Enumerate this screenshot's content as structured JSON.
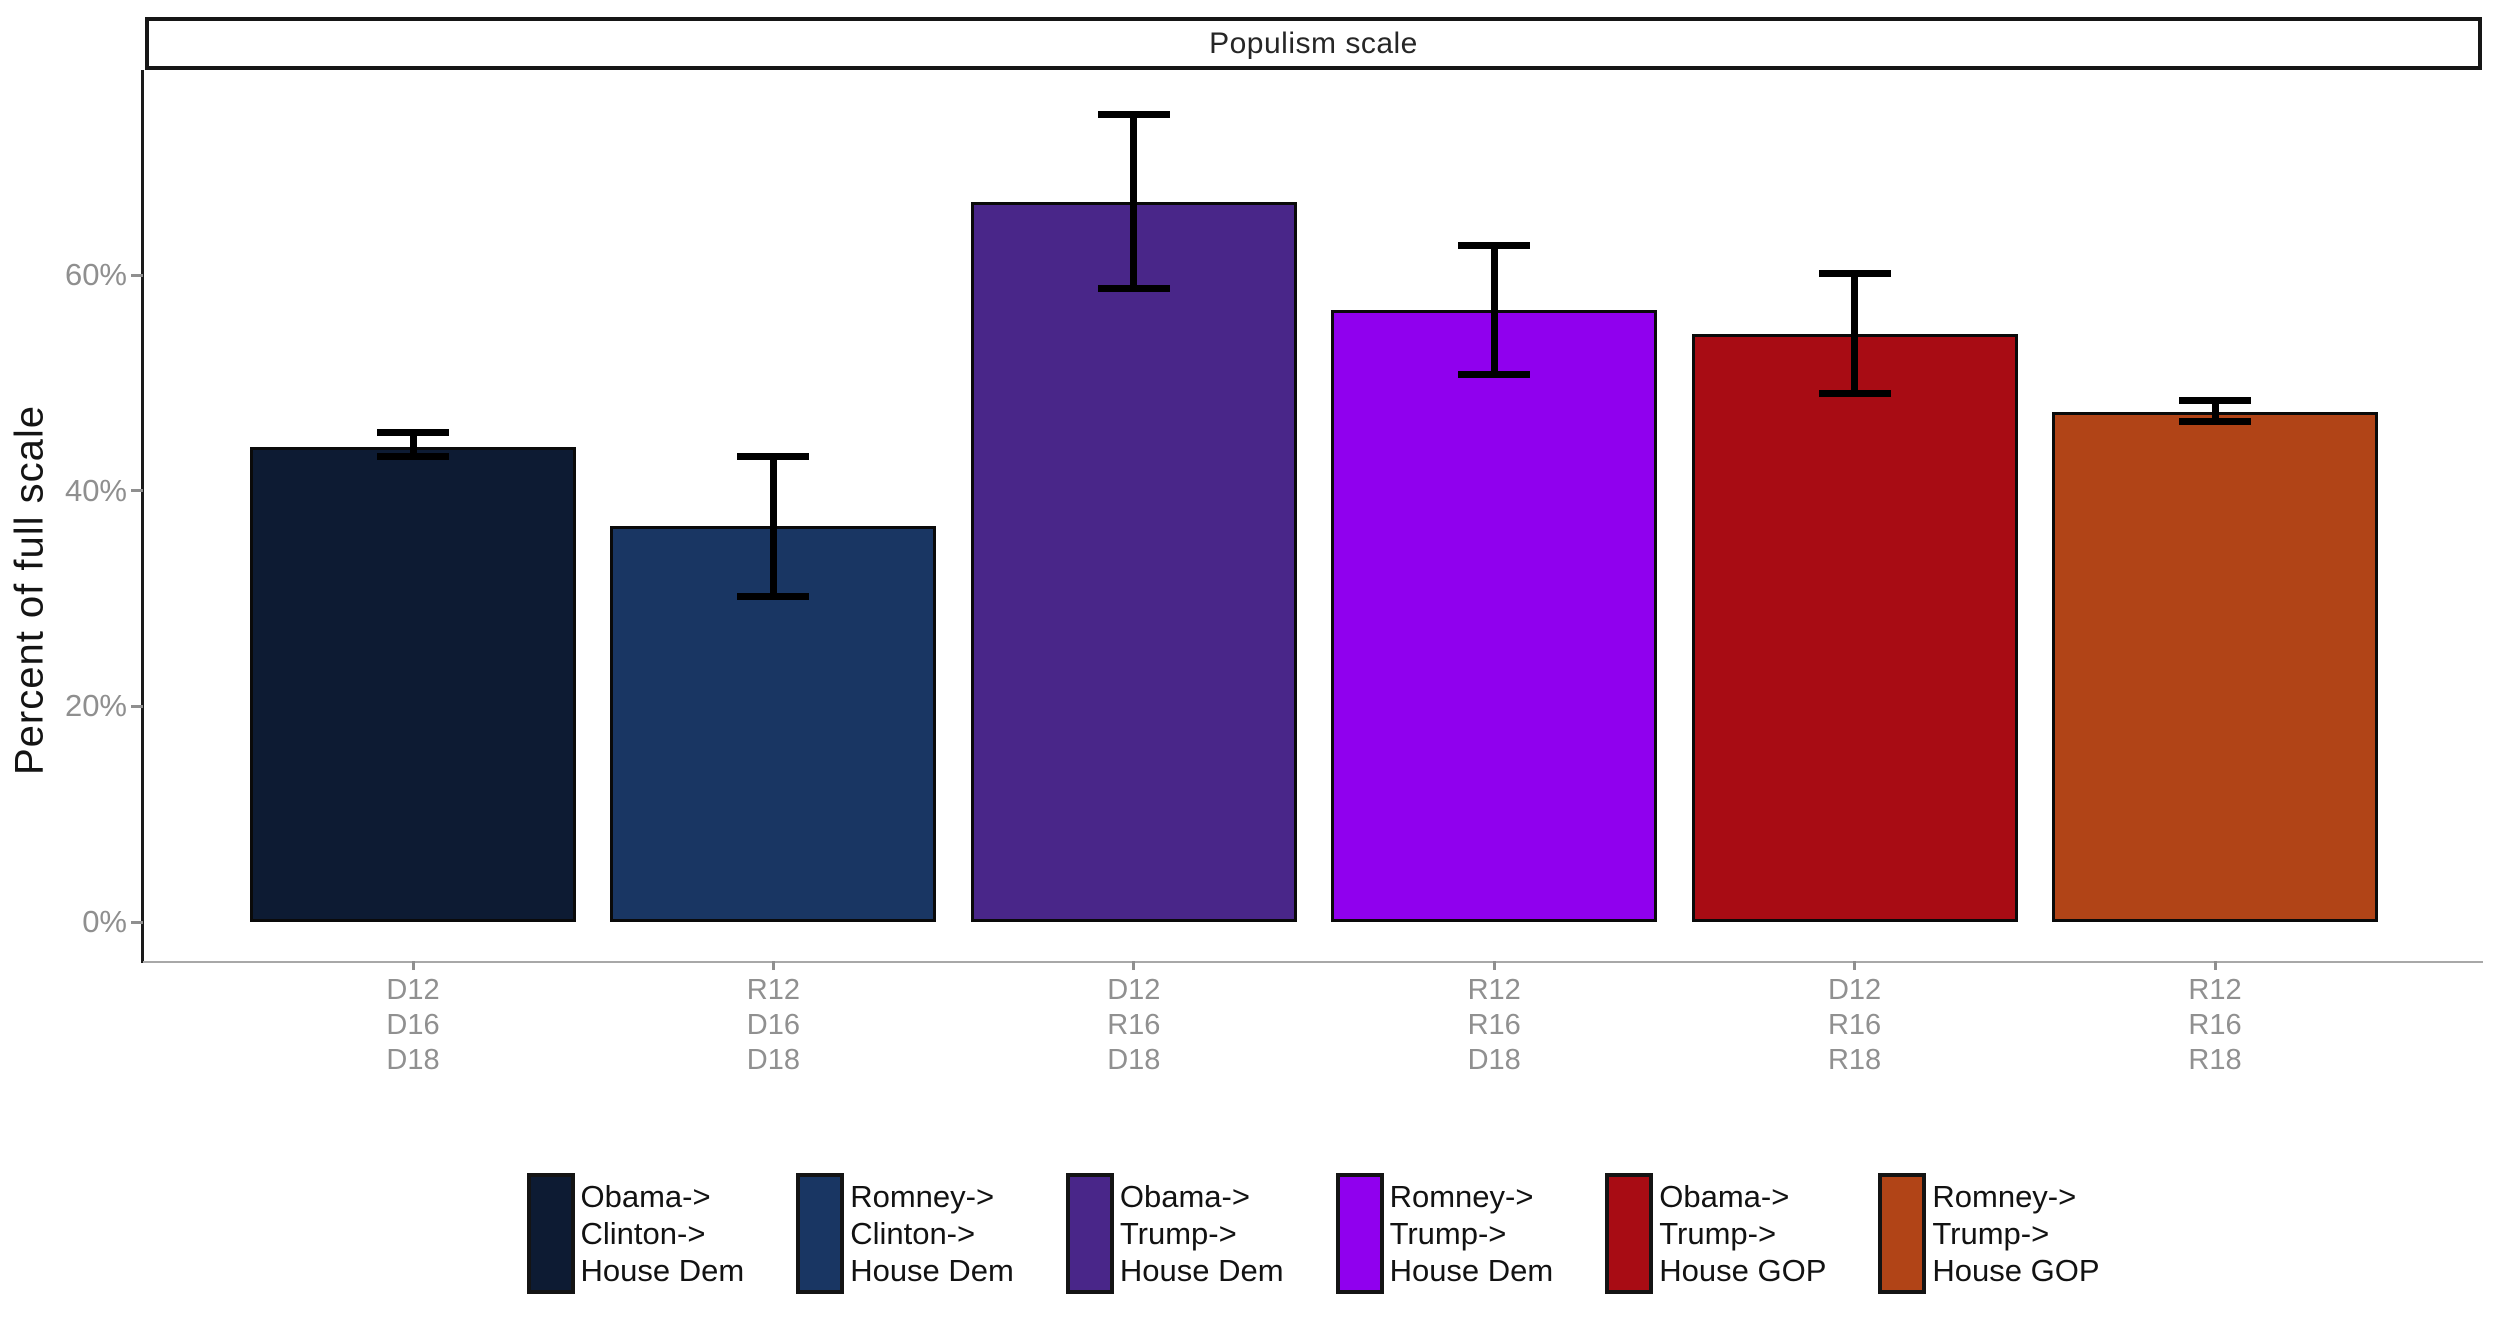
{
  "title": "Populism scale",
  "y_axis": {
    "title": "Percent of full scale",
    "tick_labels": [
      "0%",
      "20%",
      "40%",
      "60%"
    ],
    "tick_values": [
      0,
      20,
      40,
      60
    ]
  },
  "colors": {
    "background": "#FFFFFF",
    "title_text": "#262626",
    "title_box_border": "#161616",
    "y_axis_line": "#1A1A1A",
    "x_axis_line": "#A8A8A8",
    "tick_label_gray": "#8F8F8F",
    "bar_border": "#0A0A0A",
    "error_bar": "#000000",
    "legend_text": "#121212"
  },
  "chart_data": {
    "type": "bar",
    "title": "Populism scale",
    "xlabel": "",
    "ylabel": "Percent of full scale",
    "ylim": [
      0,
      79
    ],
    "yticks": [
      0,
      20,
      40,
      60
    ],
    "ytick_labels": [
      "0%",
      "20%",
      "40%",
      "60%"
    ],
    "grid": false,
    "legend_position": "bottom",
    "error_bars": true,
    "categories": [
      "D12 D16 D18",
      "R12 D16 D18",
      "D12 R16 D18",
      "R12 R16 D18",
      "D12 R16 R18",
      "R12 R16 R18"
    ],
    "values": [
      44.1,
      36.7,
      66.8,
      56.8,
      54.5,
      47.3
    ],
    "bars": [
      {
        "x_label_lines": [
          "D12",
          "D16",
          "D18"
        ],
        "legend_lines": [
          "Obama->",
          "Clinton->",
          "House Dem"
        ],
        "value": 44.1,
        "ci_low": 42.9,
        "ci_high": 45.7,
        "color": "#0D1B33"
      },
      {
        "x_label_lines": [
          "R12",
          "D16",
          "D18"
        ],
        "legend_lines": [
          "Romney->",
          "Clinton->",
          "House Dem"
        ],
        "value": 36.7,
        "ci_low": 29.9,
        "ci_high": 43.5,
        "color": "#193663"
      },
      {
        "x_label_lines": [
          "D12",
          "R16",
          "D18"
        ],
        "legend_lines": [
          "Obama->",
          "Trump->",
          "House Dem"
        ],
        "value": 66.8,
        "ci_low": 58.4,
        "ci_high": 75.2,
        "color": "#492689"
      },
      {
        "x_label_lines": [
          "R12",
          "R16",
          "D18"
        ],
        "legend_lines": [
          "Romney->",
          "Trump->",
          "House Dem"
        ],
        "value": 56.8,
        "ci_low": 50.5,
        "ci_high": 63.1,
        "color": "#9000EE"
      },
      {
        "x_label_lines": [
          "D12",
          "R16",
          "R18"
        ],
        "legend_lines": [
          "Obama->",
          "Trump->",
          "House GOP"
        ],
        "value": 54.5,
        "ci_low": 48.7,
        "ci_high": 60.5,
        "color": "#A80C14"
      },
      {
        "x_label_lines": [
          "R12",
          "R16",
          "R18"
        ],
        "legend_lines": [
          "Romney->",
          "Trump->",
          "House GOP"
        ],
        "value": 47.3,
        "ci_low": 46.1,
        "ci_high": 48.7,
        "color": "#B14417"
      }
    ]
  }
}
